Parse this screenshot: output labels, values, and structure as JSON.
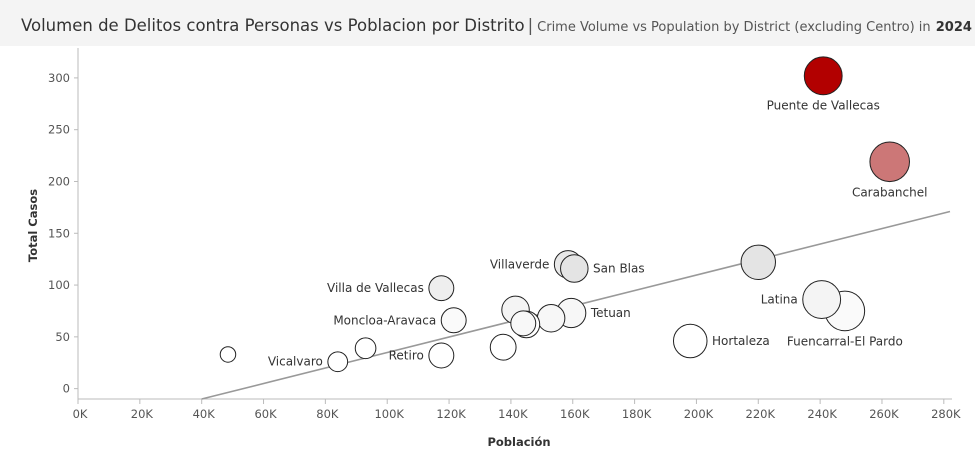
{
  "header": {
    "title_main": "Volumen de Delitos contra Personas vs Poblacion por Distrito",
    "separator": "|",
    "title_sub": "Crime Volume vs Population by District (excluding Centro) in",
    "title_year": "2024"
  },
  "chart_data": {
    "type": "scatter",
    "xlabel": "Población",
    "ylabel": "Total Casos",
    "xlim": [
      0,
      282000
    ],
    "ylim": [
      -10,
      325
    ],
    "xticks": [
      0,
      20000,
      40000,
      60000,
      80000,
      100000,
      120000,
      140000,
      160000,
      180000,
      200000,
      220000,
      240000,
      260000,
      280000
    ],
    "xtick_labels": [
      "0K",
      "20K",
      "40K",
      "60K",
      "80K",
      "100K",
      "120K",
      "140K",
      "160K",
      "180K",
      "200K",
      "220K",
      "240K",
      "260K",
      "280K"
    ],
    "yticks": [
      0,
      50,
      100,
      150,
      200,
      250,
      300
    ],
    "ytick_labels": [
      "0",
      "50",
      "100",
      "150",
      "200",
      "250",
      "300"
    ],
    "grid": false,
    "trend_line": {
      "x": [
        40000,
        282000
      ],
      "y": [
        -10,
        171
      ]
    },
    "points": [
      {
        "label": "Puente de Vallecas",
        "x": 241000,
        "y": 302,
        "color": "#b20000",
        "size": 2.2
      },
      {
        "label": "Carabanchel",
        "x": 262500,
        "y": 219,
        "color": "#cc7777",
        "size": 2.3
      },
      {
        "label": "Villaverde",
        "x": 158500,
        "y": 120,
        "color": "#e8e8e8",
        "size": 1.6
      },
      {
        "label": "San Blas",
        "x": 160500,
        "y": 116,
        "color": "#e4e4e4",
        "size": 1.6
      },
      {
        "label": "",
        "x": 220000,
        "y": 122,
        "color": "#e4e4e4",
        "size": 2.0
      },
      {
        "label": "Villa de Vallecas",
        "x": 117500,
        "y": 97,
        "color": "#eeeeee",
        "size": 1.45
      },
      {
        "label": "Latina",
        "x": 240500,
        "y": 86,
        "color": "#f4f4f4",
        "size": 2.2
      },
      {
        "label": "Fuencarral-El Pardo",
        "x": 248000,
        "y": 75,
        "color": "#fafafa",
        "size": 2.3
      },
      {
        "label": "",
        "x": 141500,
        "y": 76,
        "color": "#f4f4f4",
        "size": 1.6
      },
      {
        "label": "Tetuan",
        "x": 159500,
        "y": 73,
        "color": "#f7f7f7",
        "size": 1.7
      },
      {
        "label": "",
        "x": 153000,
        "y": 68,
        "color": "#f7f7f7",
        "size": 1.6
      },
      {
        "label": "Moncloa-Aravaca",
        "x": 121500,
        "y": 66,
        "color": "#fafafa",
        "size": 1.45
      },
      {
        "label": "",
        "x": 145000,
        "y": 62,
        "color": "#ffffff",
        "size": 1.55
      },
      {
        "label": "",
        "x": 144000,
        "y": 63,
        "color": "#f8f8f8",
        "size": 1.45
      },
      {
        "label": "Hortaleza",
        "x": 198000,
        "y": 46,
        "color": "#ffffff",
        "size": 1.95
      },
      {
        "label": "",
        "x": 137500,
        "y": 40,
        "color": "#ffffff",
        "size": 1.5
      },
      {
        "label": "",
        "x": 93000,
        "y": 39,
        "color": "#ffffff",
        "size": 1.2
      },
      {
        "label": "Retiro",
        "x": 117500,
        "y": 32,
        "color": "#ffffff",
        "size": 1.45
      },
      {
        "label": "",
        "x": 48500,
        "y": 33,
        "color": "#ffffff",
        "size": 0.9
      },
      {
        "label": "Vicalvaro",
        "x": 84000,
        "y": 26,
        "color": "#ffffff",
        "size": 1.15
      }
    ]
  }
}
